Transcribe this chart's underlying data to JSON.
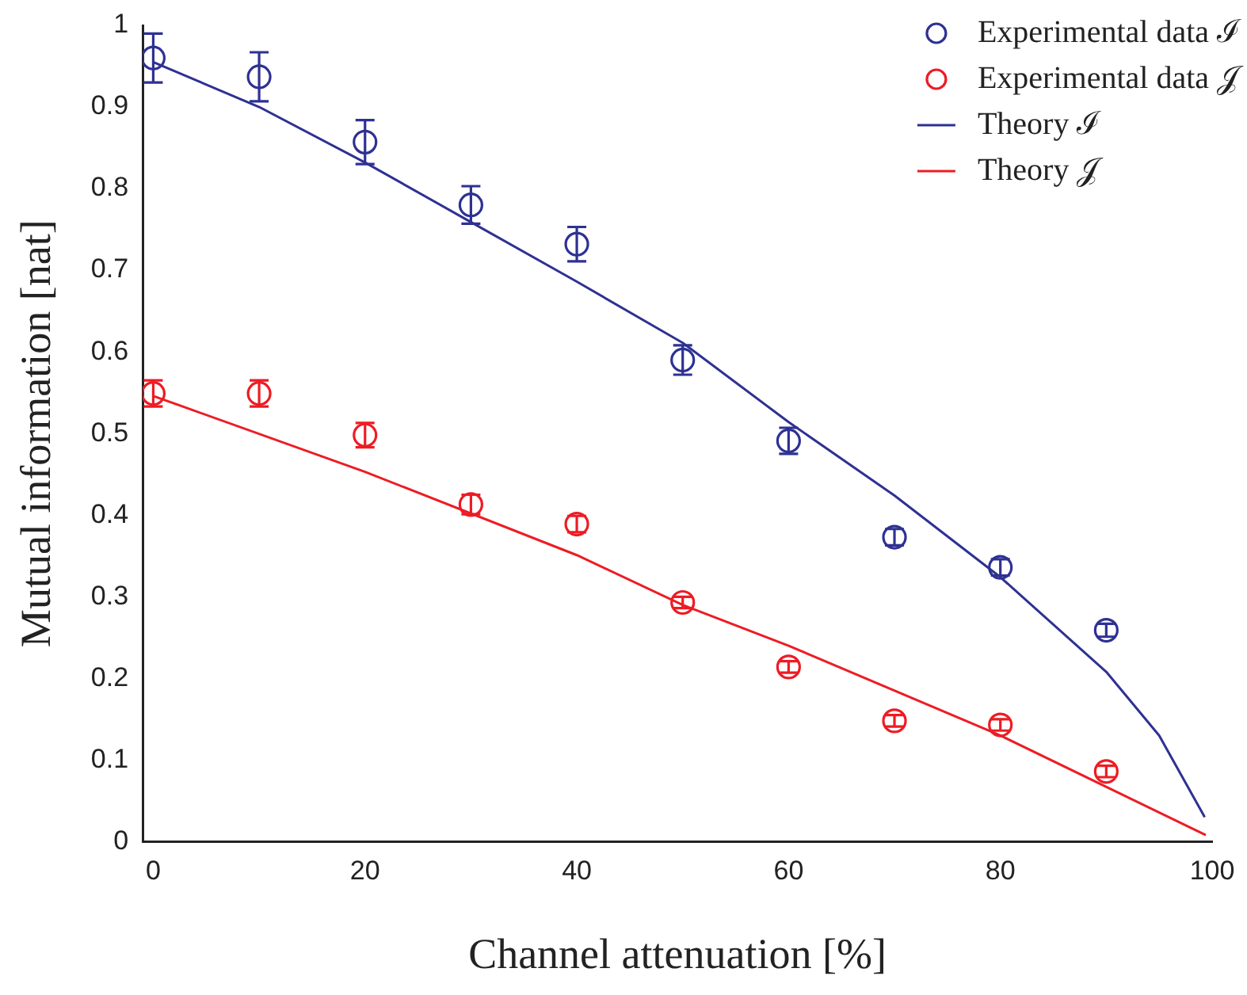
{
  "chart_data": {
    "type": "scatter",
    "xlabel": "Channel attenuation [%]",
    "ylabel": "Mutual information [nat]",
    "xlim": [
      -1,
      100
    ],
    "ylim": [
      0,
      1
    ],
    "xticks": [
      0,
      20,
      40,
      60,
      80,
      100
    ],
    "yticks": [
      0,
      0.1,
      0.2,
      0.3,
      0.4,
      0.5,
      0.6,
      0.7,
      0.8,
      0.9,
      1
    ],
    "legend": "top right",
    "series": [
      {
        "name": "Experimental data ℐ",
        "marker": "circle",
        "color": "#2e3192",
        "x": [
          0,
          10,
          20,
          30,
          40,
          50,
          60,
          70,
          80,
          90
        ],
        "values": [
          0.96,
          0.937,
          0.857,
          0.78,
          0.732,
          0.59,
          0.491,
          0.373,
          0.336,
          0.259
        ],
        "errors": [
          0.03,
          0.03,
          0.027,
          0.023,
          0.021,
          0.018,
          0.016,
          0.01,
          0.01,
          0.008
        ]
      },
      {
        "name": "Experimental data 𝒥",
        "marker": "circle",
        "color": "#ed1c24",
        "x": [
          0,
          10,
          20,
          30,
          40,
          50,
          60,
          70,
          80,
          90
        ],
        "values": [
          0.549,
          0.549,
          0.498,
          0.413,
          0.389,
          0.293,
          0.214,
          0.148,
          0.143,
          0.086
        ],
        "errors": [
          0.016,
          0.016,
          0.015,
          0.012,
          0.01,
          0.007,
          0.007,
          0.007,
          0.007,
          0.007
        ]
      },
      {
        "name": "Theory ℐ",
        "type": "line",
        "marker": "none",
        "color": "#2e3192",
        "x": [
          0,
          10,
          20,
          30,
          40,
          50,
          60,
          70,
          80,
          90,
          95,
          99.3
        ],
        "values": [
          0.955,
          0.9,
          0.832,
          0.759,
          0.686,
          0.611,
          0.514,
          0.424,
          0.324,
          0.208,
          0.13,
          0.03
        ]
      },
      {
        "name": "Theory 𝒥",
        "type": "line",
        "marker": "none",
        "color": "#ed1c24",
        "x": [
          0,
          20,
          40,
          50,
          60,
          80,
          99.4
        ],
        "values": [
          0.546,
          0.453,
          0.351,
          0.29,
          0.24,
          0.13,
          0.008
        ]
      }
    ]
  }
}
